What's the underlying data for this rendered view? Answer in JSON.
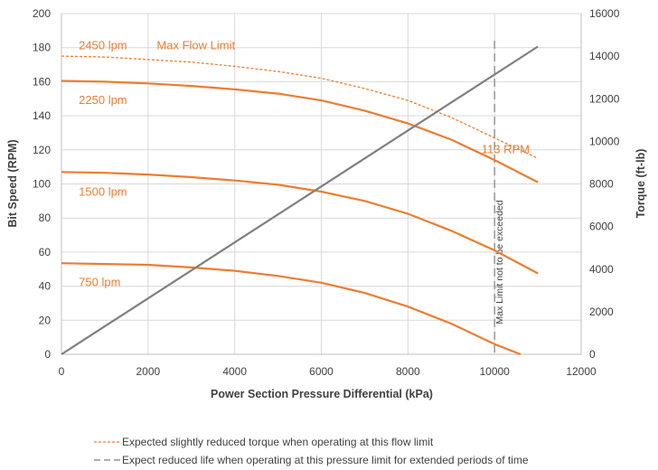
{
  "chart_data": {
    "type": "line",
    "title": "",
    "xlabel": "Power Section Pressure Differential (kPa)",
    "ylabel": "Bit Speed (RPM)",
    "y2label": "Torque (ft-lb)",
    "xlim": [
      0,
      12000
    ],
    "ylim": [
      0,
      200
    ],
    "y2lim": [
      0,
      16000
    ],
    "x_ticks": [
      "0",
      "2000",
      "4000",
      "6000",
      "8000",
      "10000",
      "12000"
    ],
    "y_ticks": [
      "0",
      "20",
      "40",
      "60",
      "80",
      "100",
      "120",
      "140",
      "160",
      "180",
      "200"
    ],
    "y2_ticks": [
      "0",
      "2000",
      "4000",
      "6000",
      "8000",
      "10000",
      "12000",
      "14000",
      "16000"
    ],
    "grid": true,
    "colors": {
      "rpm": "#ED7D31",
      "torque": "#7F7F7F",
      "limit": "#7F7F7F",
      "grid": "#D9D9D9"
    },
    "series": [
      {
        "name": "2450 lpm",
        "axis": "rpm",
        "style": "dashed",
        "x": [
          0,
          1000,
          2000,
          3000,
          4000,
          5000,
          6000,
          7000,
          8000,
          9000,
          10000,
          11000
        ],
        "y": [
          175,
          174.5,
          173,
          171.5,
          169,
          166,
          162,
          156,
          149,
          139,
          127,
          115
        ]
      },
      {
        "name": "2250 lpm",
        "axis": "rpm",
        "style": "solid",
        "x": [
          0,
          1000,
          2000,
          3000,
          4000,
          5000,
          6000,
          7000,
          8000,
          9000,
          10000,
          11000
        ],
        "y": [
          160.5,
          160,
          159,
          157.5,
          155.5,
          153,
          149,
          143,
          135.5,
          126,
          114,
          101
        ]
      },
      {
        "name": "1500 lpm",
        "axis": "rpm",
        "style": "solid",
        "x": [
          0,
          1000,
          2000,
          3000,
          4000,
          5000,
          6000,
          7000,
          8000,
          9000,
          10000,
          11000
        ],
        "y": [
          107,
          106.5,
          105.5,
          104,
          102,
          99.5,
          95.5,
          90,
          82.5,
          72.5,
          61,
          47.5
        ]
      },
      {
        "name": "750 lpm",
        "axis": "rpm",
        "style": "solid",
        "x": [
          0,
          1000,
          2000,
          3000,
          4000,
          5000,
          6000,
          7000,
          8000,
          9000,
          10000,
          10600
        ],
        "y": [
          53.5,
          53,
          52.5,
          51,
          49,
          46,
          42,
          36,
          28,
          18,
          6,
          0
        ]
      },
      {
        "name": "",
        "axis": "torque",
        "style": "solid",
        "x": [
          0,
          11000
        ],
        "y": [
          0,
          14450
        ]
      }
    ],
    "annotations": [
      {
        "text": "2450 lpm",
        "x": 400,
        "y": 179
      },
      {
        "text": "Max Flow Limit",
        "x": 2200,
        "y": 179
      },
      {
        "text": "2250 lpm",
        "x": 400,
        "y": 147
      },
      {
        "text": "1500 lpm",
        "x": 400,
        "y": 93
      },
      {
        "text": "750 lpm",
        "x": 400,
        "y": 40
      },
      {
        "text": "113 RPM",
        "x": 9700,
        "y": 118
      }
    ],
    "vline": {
      "x": 10000,
      "label": "Max Limit not to be exceeded"
    },
    "legend": {
      "position": "bottom",
      "entries": [
        {
          "style": "dashed-orange",
          "text": "Expected slightly reduced torque when operating at this flow limit"
        },
        {
          "style": "dashed-gray",
          "text": "Expect reduced life when operating at this pressure limit for extended periods of time"
        }
      ]
    }
  }
}
